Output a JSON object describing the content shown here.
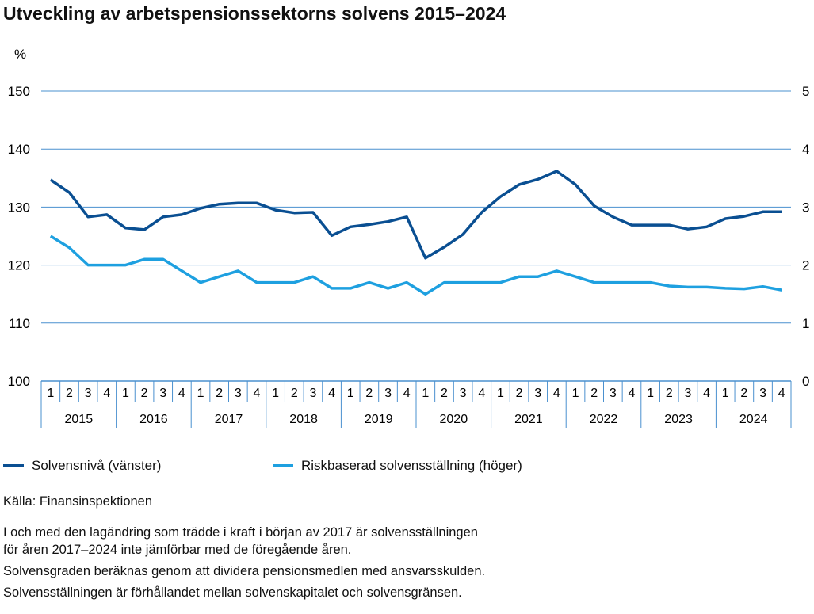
{
  "title": "Utveckling av arbetspensionssektorns solvens 2015–2024",
  "source": "Källa: Finansinspektionen",
  "notes": [
    "I och med den lagändring som trädde i kraft i början av 2017 är solvensställningen",
    "för åren 2017–2024 inte jämförbar med de föregående åren.",
    "Solvensgraden beräknas genom att dividera pensionsmedlen med ansvarsskulden.",
    "Solvensställningen är förhållandet mellan solvenskapitalet och solvensgränsen."
  ],
  "chart_data": {
    "type": "line",
    "ylabel": "%",
    "ylim": [
      100,
      150
    ],
    "y_ticks": [
      "100",
      "110",
      "120",
      "130",
      "140",
      "150"
    ],
    "y2lim": [
      0,
      5
    ],
    "y2_ticks": [
      "0",
      "1",
      "2",
      "3",
      "4",
      "5"
    ],
    "grid": true,
    "legend_placement": "bottom",
    "years": [
      "2015",
      "2016",
      "2017",
      "2018",
      "2019",
      "2020",
      "2021",
      "2022",
      "2023",
      "2024"
    ],
    "quarters": [
      "1",
      "2",
      "3",
      "4"
    ],
    "series": [
      {
        "name": "Solvensnivå (vänster)",
        "axis": "left",
        "color": "#0a4f92",
        "values": [
          134.7,
          132.5,
          128.3,
          128.7,
          126.4,
          126.1,
          128.3,
          128.7,
          129.8,
          130.5,
          130.7,
          130.7,
          129.5,
          129.0,
          129.1,
          125.1,
          126.6,
          127.0,
          127.5,
          128.3,
          121.2,
          123.1,
          125.3,
          129.1,
          131.8,
          133.9,
          134.8,
          136.2,
          133.9,
          130.2,
          128.3,
          126.9,
          126.9,
          126.9,
          126.2,
          126.6,
          128.0,
          128.4,
          129.2,
          129.2
        ]
      },
      {
        "name": "Riskbaserad solvensställning (höger)",
        "axis": "right",
        "color": "#1ea0e0",
        "values": [
          2.5,
          2.3,
          2.0,
          2.0,
          2.0,
          2.1,
          2.1,
          1.9,
          1.7,
          1.8,
          1.9,
          1.7,
          1.7,
          1.7,
          1.8,
          1.6,
          1.6,
          1.7,
          1.6,
          1.7,
          1.5,
          1.7,
          1.7,
          1.7,
          1.7,
          1.8,
          1.8,
          1.9,
          1.8,
          1.7,
          1.7,
          1.7,
          1.7,
          1.64,
          1.62,
          1.62,
          1.6,
          1.59,
          1.63,
          1.57
        ]
      }
    ]
  }
}
